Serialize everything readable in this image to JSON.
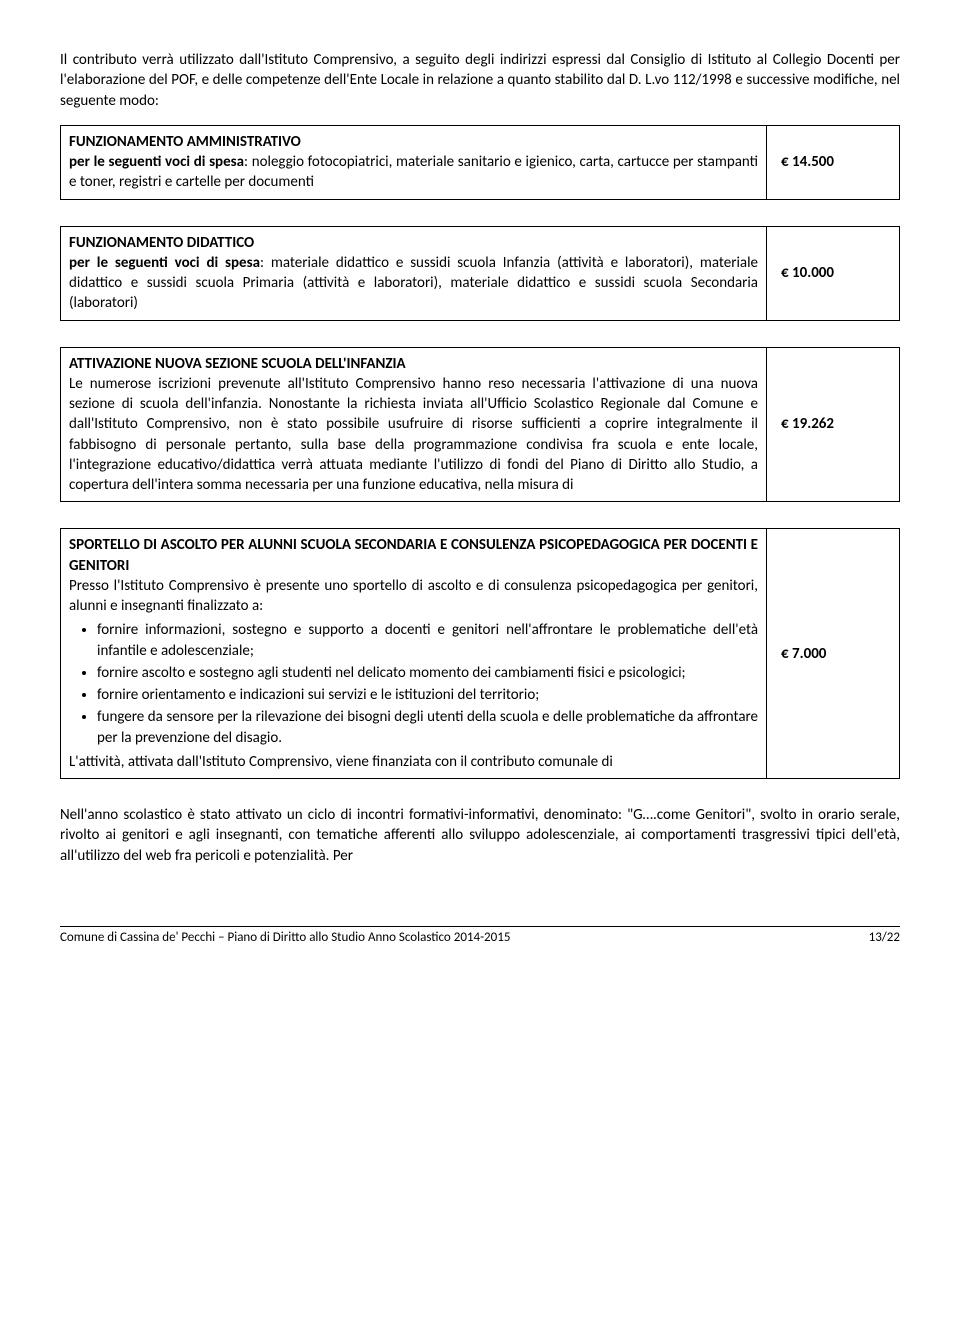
{
  "intro": "Il contributo verrà utilizzato dall'Istituto Comprensivo, a seguito degli indirizzi espressi dal Consiglio di Istituto al Collegio Docenti per l'elaborazione del POF, e delle competenze dell'Ente Locale in relazione a quanto stabilito dal D. L.vo 112/1998 e successive modifiche, nel seguente modo:",
  "box1": {
    "heading": "FUNZIONAMENTO AMMINISTRATIVO",
    "label": "per le seguenti voci di spesa",
    "body": ": noleggio fotocopiatrici, materiale sanitario e igienico, carta, cartucce per stampanti e toner, registri e cartelle per documenti",
    "amount": "€ 14.500"
  },
  "box2": {
    "heading": "FUNZIONAMENTO DIDATTICO",
    "label": "per le seguenti voci di spesa",
    "body": ": materiale didattico e sussidi scuola Infanzia (attività e laboratori), materiale didattico e sussidi scuola Primaria (attività e laboratori), materiale didattico e sussidi scuola Secondaria (laboratori)",
    "amount": "€ 10.000"
  },
  "box3": {
    "heading": "ATTIVAZIONE NUOVA SEZIONE SCUOLA DELL'INFANZIA",
    "body": "Le numerose iscrizioni prevenute all'Istituto Comprensivo hanno reso necessaria l'attivazione di una nuova sezione di scuola dell'infanzia. Nonostante la richiesta inviata all'Ufficio Scolastico Regionale dal Comune e dall'Istituto Comprensivo, non è stato possibile usufruire di risorse sufficienti a coprire integralmente il fabbisogno di personale pertanto, sulla base della programmazione condivisa fra scuola e ente locale, l'integrazione educativo/didattica verrà attuata mediante l'utilizzo di fondi del Piano di Diritto allo Studio, a copertura dell'intera somma necessaria per una funzione educativa, nella misura di",
    "amount": "€ 19.262"
  },
  "box4": {
    "heading": "SPORTELLO DI ASCOLTO PER ALUNNI SCUOLA SECONDARIA E CONSULENZA PSICOPEDAGOGICA PER DOCENTI E GENITORI",
    "lead": "Presso l'Istituto Comprensivo è presente uno sportello di ascolto e di consulenza psicopedagogica per genitori, alunni e insegnanti finalizzato a:",
    "bullets": [
      "fornire informazioni, sostegno e supporto a docenti e genitori nell'affrontare le problematiche dell'età infantile e adolescenziale;",
      "fornire ascolto e sostegno agli studenti nel delicato momento dei cambiamenti fisici e psicologici;",
      "fornire orientamento e indicazioni sui servizi e le istituzioni del territorio;",
      "fungere da sensore per la rilevazione dei bisogni degli utenti della scuola e delle problematiche da affrontare per la prevenzione del disagio."
    ],
    "trail": "L'attività, attivata dall'Istituto Comprensivo, viene finanziata con il contributo comunale di",
    "amount": "€ 7.000"
  },
  "closing": "Nell'anno scolastico è stato attivato un ciclo di incontri formativi-informativi, denominato: \"G….come Genitori\", svolto in orario serale, rivolto ai genitori e agli insegnanti, con tematiche afferenti allo sviluppo adolescenziale, ai comportamenti trasgressivi tipici dell'età, all'utilizzo del web fra pericoli e potenzialità. Per",
  "footer": {
    "left": "Comune di Cassina de' Pecchi – Piano di Diritto allo Studio Anno Scolastico 2014-2015",
    "right": "13/22"
  }
}
